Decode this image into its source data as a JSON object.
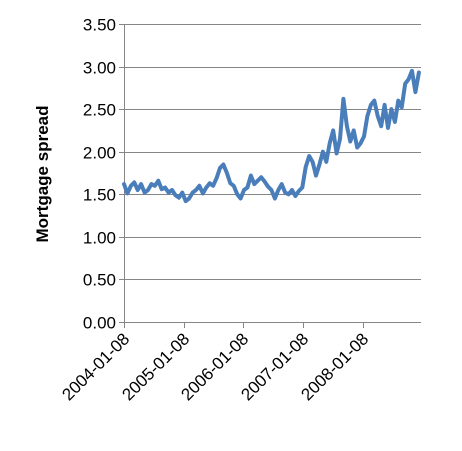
{
  "chart_data": {
    "type": "line",
    "title": "",
    "xlabel": "",
    "ylabel": "Mortgage spread",
    "ylim": [
      0,
      3.5
    ],
    "xlim": [
      "2004-01-08",
      "2008-12-31"
    ],
    "yticks": [
      "0.00",
      "0.50",
      "1.00",
      "1.50",
      "2.00",
      "2.50",
      "3.00",
      "3.50"
    ],
    "xticks": [
      "2004-01-08",
      "2005-01-08",
      "2006-01-08",
      "2007-01-08",
      "2008-01-08"
    ],
    "grid": "horizontal",
    "legend": "none",
    "colors": {
      "series": "#4a7ebb",
      "axis": "#868686"
    },
    "series": [
      {
        "x": [
          "2004-01-08",
          "2004-01-29",
          "2004-02-19",
          "2004-03-11",
          "2004-04-01",
          "2004-04-22",
          "2004-05-13",
          "2004-06-03",
          "2004-06-24",
          "2004-07-15",
          "2004-08-05",
          "2004-08-26",
          "2004-09-16",
          "2004-10-07",
          "2004-10-28",
          "2004-11-18",
          "2004-12-09",
          "2004-12-30",
          "2005-01-20",
          "2005-02-10",
          "2005-03-03",
          "2005-03-24",
          "2005-04-14",
          "2005-05-05",
          "2005-05-26",
          "2005-06-16",
          "2005-07-07",
          "2005-07-28",
          "2005-08-18",
          "2005-09-08",
          "2005-09-29",
          "2005-10-20",
          "2005-11-10",
          "2005-12-01",
          "2005-12-22",
          "2006-01-12",
          "2006-02-02",
          "2006-02-23",
          "2006-03-16",
          "2006-04-06",
          "2006-04-27",
          "2006-05-18",
          "2006-06-08",
          "2006-06-29",
          "2006-07-20",
          "2006-08-10",
          "2006-08-31",
          "2006-09-21",
          "2006-10-12",
          "2006-11-02",
          "2006-11-23",
          "2006-12-14",
          "2007-01-04",
          "2007-01-25",
          "2007-02-15",
          "2007-03-08",
          "2007-03-29",
          "2007-04-19",
          "2007-05-10",
          "2007-05-31",
          "2007-06-21",
          "2007-07-12",
          "2007-08-02",
          "2007-08-23",
          "2007-09-13",
          "2007-10-04",
          "2007-10-25",
          "2007-11-15",
          "2007-12-06",
          "2007-12-27",
          "2008-01-17",
          "2008-02-07",
          "2008-02-28",
          "2008-03-20",
          "2008-04-10",
          "2008-05-01",
          "2008-05-22",
          "2008-06-12",
          "2008-07-03",
          "2008-07-24",
          "2008-08-14",
          "2008-09-04",
          "2008-09-25",
          "2008-10-16",
          "2008-11-06",
          "2008-11-27",
          "2008-12-18"
        ],
        "values": [
          1.62,
          1.51,
          1.6,
          1.64,
          1.55,
          1.62,
          1.52,
          1.55,
          1.62,
          1.6,
          1.66,
          1.56,
          1.58,
          1.52,
          1.55,
          1.49,
          1.46,
          1.52,
          1.42,
          1.45,
          1.52,
          1.55,
          1.6,
          1.51,
          1.58,
          1.63,
          1.6,
          1.69,
          1.81,
          1.85,
          1.75,
          1.63,
          1.6,
          1.5,
          1.45,
          1.55,
          1.58,
          1.72,
          1.62,
          1.66,
          1.7,
          1.65,
          1.59,
          1.55,
          1.45,
          1.55,
          1.62,
          1.52,
          1.5,
          1.55,
          1.48,
          1.54,
          1.58,
          1.82,
          1.95,
          1.88,
          1.72,
          1.85,
          2.0,
          1.88,
          2.1,
          2.25,
          1.98,
          2.15,
          2.62,
          2.3,
          2.12,
          2.25,
          2.05,
          2.1,
          2.18,
          2.42,
          2.55,
          2.6,
          2.42,
          2.3,
          2.55,
          2.28,
          2.5,
          2.35,
          2.6,
          2.52,
          2.8,
          2.85,
          2.95,
          2.7,
          2.93
        ]
      }
    ]
  }
}
